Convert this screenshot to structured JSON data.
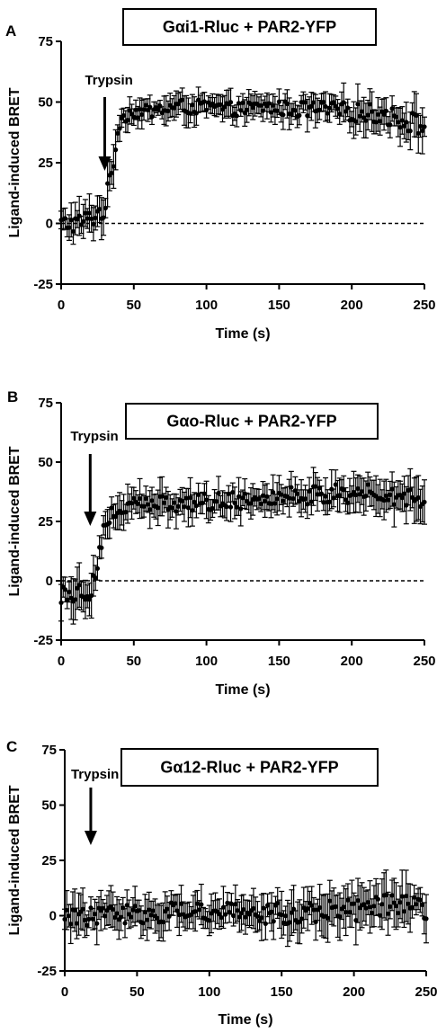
{
  "chart_data": [
    {
      "type": "scatter",
      "panel_label": "A",
      "title": "Gαi1-Rluc + PAR2-YFP",
      "xlabel": "Time (s)",
      "ylabel": "Ligand-induced BRET",
      "xlim": [
        0,
        250
      ],
      "ylim": [
        -25,
        75
      ],
      "xticks": [
        "0",
        "50",
        "100",
        "150",
        "200",
        "250"
      ],
      "yticks": [
        "-25",
        "0",
        "25",
        "50",
        "75"
      ],
      "reference_line_y": 0,
      "annotation": {
        "text": "Trypsin",
        "x": 30
      },
      "markers": "filled circles with error bars",
      "series": [
        {
          "x": [
            0,
            10,
            20,
            30,
            35,
            40,
            45,
            50,
            60,
            70,
            80,
            100,
            120,
            140,
            160,
            180,
            200,
            220,
            240,
            250
          ],
          "y": [
            0,
            0,
            2,
            6,
            22,
            42,
            45,
            46,
            46,
            47,
            48,
            48,
            47,
            48,
            47,
            47,
            46,
            45,
            42,
            40
          ],
          "error": [
            6,
            7,
            7,
            8,
            8,
            6,
            5,
            5,
            5,
            5,
            6,
            5,
            5,
            5,
            6,
            6,
            7,
            7,
            8,
            8
          ]
        }
      ]
    },
    {
      "type": "scatter",
      "panel_label": "B",
      "title": "Gαo-Rluc + PAR2-YFP",
      "xlabel": "Time (s)",
      "ylabel": "Ligand-induced BRET",
      "xlim": [
        0,
        250
      ],
      "ylim": [
        -25,
        75
      ],
      "xticks": [
        "0",
        "50",
        "100",
        "150",
        "200",
        "250"
      ],
      "yticks": [
        "-25",
        "0",
        "25",
        "50",
        "75"
      ],
      "reference_line_y": 0,
      "annotation": {
        "text": "Trypsin",
        "x": 20
      },
      "markers": "filled circles with error bars",
      "series": [
        {
          "x": [
            0,
            10,
            20,
            25,
            30,
            35,
            40,
            50,
            60,
            80,
            100,
            120,
            140,
            160,
            180,
            200,
            220,
            240,
            250
          ],
          "y": [
            -5,
            -5,
            -4,
            8,
            22,
            28,
            30,
            32,
            32,
            33,
            33,
            34,
            35,
            36,
            36,
            37,
            36,
            36,
            35
          ],
          "error": [
            8,
            8,
            8,
            8,
            8,
            7,
            7,
            7,
            7,
            7,
            7,
            7,
            7,
            7,
            7,
            8,
            8,
            8,
            8
          ]
        }
      ]
    },
    {
      "type": "scatter",
      "panel_label": "C",
      "title": "Gα12-Rluc + PAR2-YFP",
      "xlabel": "Time (s)",
      "ylabel": "Ligand-induced BRET",
      "xlim": [
        0,
        250
      ],
      "ylim": [
        -25,
        75
      ],
      "xticks": [
        "0",
        "50",
        "100",
        "150",
        "200",
        "250"
      ],
      "yticks": [
        "-25",
        "0",
        "25",
        "50",
        "75"
      ],
      "reference_line_y": null,
      "annotation": {
        "text": "Trypsin",
        "x": 18
      },
      "markers": "filled circles with error bars",
      "series": [
        {
          "x": [
            0,
            20,
            40,
            60,
            80,
            100,
            120,
            140,
            160,
            180,
            200,
            220,
            240,
            250
          ],
          "y": [
            0,
            0,
            1,
            1,
            2,
            2,
            2,
            1,
            1,
            2,
            3,
            4,
            4,
            3
          ],
          "error": [
            8,
            8,
            8,
            8,
            8,
            8,
            8,
            9,
            9,
            9,
            10,
            10,
            10,
            10
          ]
        }
      ]
    }
  ]
}
